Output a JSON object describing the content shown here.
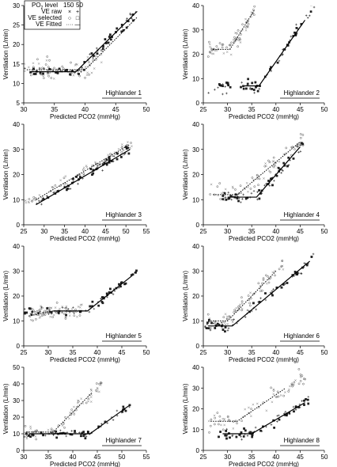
{
  "legend": {
    "header_label": "PO",
    "header_sub": "2",
    "header_suffix": " level",
    "levels": [
      "150",
      "50"
    ],
    "rows": [
      {
        "label": "VE raw",
        "symbols": [
          "×",
          "+"
        ]
      },
      {
        "label": "VE selected",
        "symbols": [
          "○",
          "□"
        ]
      },
      {
        "label": "VE Fitted",
        "symbols": [
          "····",
          "—"
        ]
      }
    ]
  },
  "chart_data": [
    {
      "type": "scatter",
      "panel": "Highlander 1",
      "xlabel": "Predicted PCO2 (mmHg)",
      "ylabel": "Ventilation (L/min)",
      "xlim": [
        30,
        50
      ],
      "ylim": [
        5,
        30
      ],
      "xticks": [
        30,
        35,
        40,
        45,
        50
      ],
      "yticks": [
        5,
        10,
        15,
        20,
        25,
        30
      ],
      "series": [
        {
          "level": "150",
          "fitted": [
            [
              30.5,
              13.5
            ],
            [
              40,
              13.5
            ],
            [
              48.5,
              27
            ]
          ],
          "scatter_x": [
            30,
            43
          ],
          "spread": 3.0
        },
        {
          "level": "50",
          "fitted": [
            [
              31,
              13
            ],
            [
              38.5,
              13
            ],
            [
              48.5,
              28.5
            ]
          ],
          "scatter_x": [
            30,
            49
          ],
          "spread": 1.6
        }
      ]
    },
    {
      "type": "scatter",
      "panel": "Highlander 2",
      "xlabel": "Predicted PCO2 (mmHg)",
      "ylabel": "Ventilation (L/min)",
      "xlim": [
        25,
        50
      ],
      "ylim": [
        0,
        40
      ],
      "xticks": [
        25,
        30,
        35,
        40,
        45,
        50
      ],
      "yticks": [
        0,
        10,
        20,
        30,
        40
      ],
      "series": [
        {
          "level": "150",
          "fitted": [
            [
              27,
              22
            ],
            [
              30.5,
              22
            ],
            [
              35.5,
              38
            ]
          ],
          "scatter_x": [
            26,
            36
          ],
          "spread": 4.0
        },
        {
          "level": "50",
          "fitted": [
            [
              33.5,
              7
            ],
            [
              36.5,
              7
            ],
            [
              46,
              34
            ]
          ],
          "scatter_x": [
            26,
            48
          ],
          "spread": 3.0
        }
      ]
    },
    {
      "type": "scatter",
      "panel": "Highlander 3",
      "xlabel": "Predicted PCO2 (mmHg)",
      "ylabel": "Ventilation (L/min)",
      "xlim": [
        25,
        55
      ],
      "ylim": [
        0,
        40
      ],
      "xticks": [
        25,
        30,
        35,
        40,
        45,
        50,
        55
      ],
      "yticks": [
        0,
        10,
        20,
        30,
        40
      ],
      "series": [
        {
          "level": "150",
          "fitted": [
            [
              28,
              10
            ],
            [
              51,
              32
            ]
          ],
          "scatter_x": [
            25,
            52
          ],
          "spread": 2.5
        },
        {
          "level": "50",
          "fitted": [
            [
              28,
              8
            ],
            [
              51,
              30
            ]
          ],
          "scatter_x": [
            28,
            51
          ],
          "spread": 2.0
        }
      ]
    },
    {
      "type": "scatter",
      "panel": "Highlander 4",
      "xlabel": "Predicted PCO2 (mmHg)",
      "ylabel": "Ventilation (L/min)",
      "xlim": [
        25,
        50
      ],
      "ylim": [
        0,
        40
      ],
      "xticks": [
        25,
        30,
        35,
        40,
        45,
        50
      ],
      "yticks": [
        0,
        10,
        20,
        30,
        40
      ],
      "series": [
        {
          "level": "150",
          "fitted": [
            [
              27,
              12
            ],
            [
              32,
              12
            ],
            [
              45,
              33
            ]
          ],
          "scatter_x": [
            26,
            46
          ],
          "spread": 4.5
        },
        {
          "level": "50",
          "fitted": [
            [
              30,
              11
            ],
            [
              36,
              11
            ],
            [
              45,
              31
            ]
          ],
          "scatter_x": [
            29,
            46
          ],
          "spread": 2.5
        }
      ]
    },
    {
      "type": "scatter",
      "panel": "Highlander 5",
      "xlabel": "Predicted PCO2 (mmHg)",
      "ylabel": "Ventilation (L/min)",
      "xlim": [
        25,
        50
      ],
      "ylim": [
        0,
        40
      ],
      "xticks": [
        25,
        30,
        35,
        40,
        45,
        50
      ],
      "yticks": [
        0,
        10,
        20,
        30,
        40
      ],
      "series": [
        {
          "level": "150",
          "fitted": [
            [
              26,
              12
            ],
            [
              31,
              14
            ],
            [
              36,
              14
            ]
          ],
          "scatter_x": [
            26,
            37
          ],
          "spread": 3.0
        },
        {
          "level": "50",
          "fitted": [
            [
              31,
              14
            ],
            [
              38,
              14
            ],
            [
              47,
              28
            ]
          ],
          "scatter_x": [
            25,
            48
          ],
          "spread": 1.6
        }
      ]
    },
    {
      "type": "scatter",
      "panel": "Highlander 6",
      "xlabel": "Predicted PCO2 (mmHg)",
      "ylabel": "Ventilation (L/min)",
      "xlim": [
        25,
        50
      ],
      "ylim": [
        0,
        40
      ],
      "xticks": [
        25,
        30,
        35,
        40,
        45,
        50
      ],
      "yticks": [
        0,
        10,
        20,
        30,
        40
      ],
      "series": [
        {
          "level": "150",
          "fitted": [
            [
              26,
              10
            ],
            [
              30,
              10
            ],
            [
              40,
              30
            ]
          ],
          "scatter_x": [
            26,
            42
          ],
          "spread": 3.5
        },
        {
          "level": "50",
          "fitted": [
            [
              26,
              8
            ],
            [
              31,
              8
            ],
            [
              47,
              34
            ]
          ],
          "scatter_x": [
            25,
            48
          ],
          "spread": 2.5
        }
      ]
    },
    {
      "type": "scatter",
      "panel": "Highlander 7",
      "xlabel": "Predicted PCO2 (mmHg)",
      "ylabel": "Ventilation (L/min)",
      "xlim": [
        30,
        55
      ],
      "ylim": [
        0,
        50
      ],
      "xticks": [
        30,
        35,
        40,
        45,
        50,
        55
      ],
      "yticks": [
        0,
        10,
        20,
        30,
        40,
        50
      ],
      "series": [
        {
          "level": "150",
          "fitted": [
            [
              30.5,
              11
            ],
            [
              36,
              11
            ],
            [
              44,
              35
            ]
          ],
          "scatter_x": [
            30,
            46
          ],
          "spread": 4.5
        },
        {
          "level": "50",
          "fitted": [
            [
              31,
              10
            ],
            [
              43.5,
              10
            ],
            [
              51.5,
              27
            ]
          ],
          "scatter_x": [
            30,
            52
          ],
          "spread": 2.5
        }
      ]
    },
    {
      "type": "scatter",
      "panel": "Highlander 8",
      "xlabel": "Predicted PCO2 (mmHg)",
      "ylabel": "Ventilation (L/min)",
      "xlim": [
        25,
        50
      ],
      "ylim": [
        0,
        40
      ],
      "xticks": [
        25,
        30,
        35,
        40,
        45,
        50
      ],
      "yticks": [
        0,
        10,
        20,
        30,
        40
      ],
      "series": [
        {
          "level": "150",
          "fitted": [
            [
              26.5,
              14
            ],
            [
              32,
              14
            ],
            [
              42,
              30
            ]
          ],
          "scatter_x": [
            26,
            47
          ],
          "spread": 5.0
        },
        {
          "level": "50",
          "fitted": [
            [
              29,
              8
            ],
            [
              35,
              8
            ],
            [
              46,
              23
            ]
          ],
          "scatter_x": [
            28,
            47
          ],
          "spread": 2.5
        }
      ]
    }
  ]
}
